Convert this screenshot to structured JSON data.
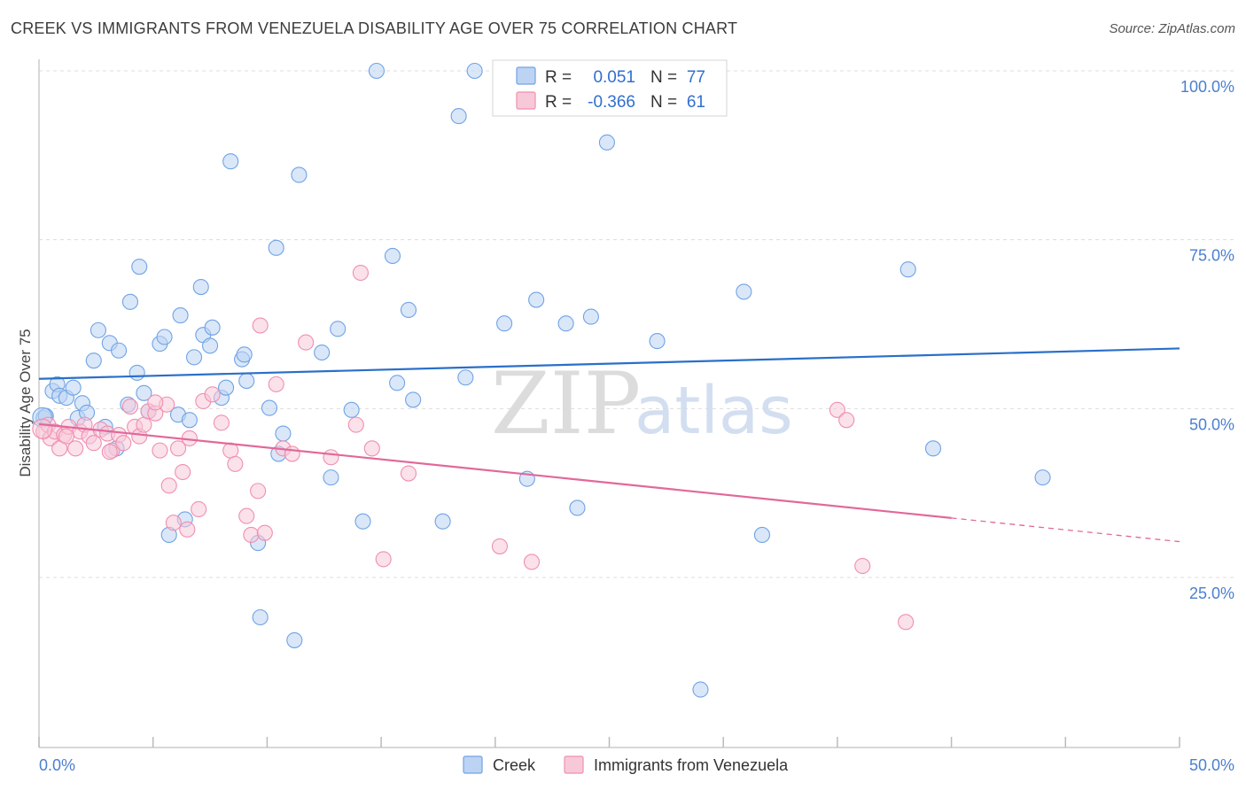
{
  "title": "CREEK VS IMMIGRANTS FROM VENEZUELA DISABILITY AGE OVER 75 CORRELATION CHART",
  "source": "Source: ZipAtlas.com",
  "watermark": {
    "zip": "ZIP",
    "atlas": "atlas"
  },
  "colors": {
    "creek": "#6fa3e6",
    "creek_fill": "#bcd3f3",
    "creek_line": "#2a6fc9",
    "venezuela": "#ef8fb0",
    "venezuela_fill": "#f7c9d8",
    "venezuela_line": "#e2689a",
    "axis_label": "#4a7fd0",
    "grid": "#dddddd"
  },
  "legend_box": {
    "rows": [
      {
        "r_label": "R =",
        "r_value": "0.051",
        "n_label": "N =",
        "n_value": "77"
      },
      {
        "r_label": "R =",
        "r_value": "-0.366",
        "n_label": "N =",
        "n_value": "61"
      }
    ]
  },
  "bottom_legend": [
    "Creek",
    "Immigrants from Venezuela"
  ],
  "chart_data": {
    "type": "scatter",
    "xlabel": "",
    "ylabel": "Disability Age Over 75",
    "xlim": [
      0,
      50
    ],
    "ylim": [
      0,
      105
    ],
    "x_tick_labels": [
      "0.0%",
      "50.0%"
    ],
    "y_tick_labels": [
      "100.0%",
      "75.0%",
      "50.0%",
      "25.0%"
    ],
    "y_ticks": [
      100,
      75,
      50,
      25
    ],
    "grid": true,
    "legend_position": "top-center",
    "series": [
      {
        "name": "Creek",
        "R": 0.051,
        "N": 77,
        "trend": {
          "x": [
            0,
            50
          ],
          "y": [
            54.4,
            58.9
          ],
          "dashed_from": null
        },
        "points": [
          [
            0.2,
            48.6
          ],
          [
            0.3,
            48.9
          ],
          [
            0.6,
            52.6
          ],
          [
            0.8,
            53.6
          ],
          [
            0.9,
            51.9
          ],
          [
            1.2,
            51.6
          ],
          [
            1.5,
            53.1
          ],
          [
            1.7,
            48.6
          ],
          [
            1.9,
            50.8
          ],
          [
            2.1,
            49.4
          ],
          [
            2.4,
            57.1
          ],
          [
            2.6,
            61.6
          ],
          [
            2.9,
            47.3
          ],
          [
            3.1,
            59.7
          ],
          [
            3.4,
            44.1
          ],
          [
            3.5,
            58.6
          ],
          [
            3.9,
            50.6
          ],
          [
            4.0,
            65.8
          ],
          [
            4.3,
            55.3
          ],
          [
            4.4,
            71.0
          ],
          [
            4.6,
            52.3
          ],
          [
            4.8,
            49.6
          ],
          [
            5.3,
            59.6
          ],
          [
            5.5,
            60.6
          ],
          [
            5.7,
            31.3
          ],
          [
            6.1,
            49.1
          ],
          [
            6.2,
            63.8
          ],
          [
            6.4,
            33.6
          ],
          [
            6.6,
            48.3
          ],
          [
            6.8,
            57.6
          ],
          [
            7.1,
            68.0
          ],
          [
            7.2,
            60.9
          ],
          [
            7.5,
            59.3
          ],
          [
            7.6,
            62.0
          ],
          [
            8.0,
            51.6
          ],
          [
            8.2,
            53.1
          ],
          [
            8.4,
            86.6
          ],
          [
            8.9,
            57.3
          ],
          [
            9.0,
            58.0
          ],
          [
            9.1,
            54.1
          ],
          [
            9.6,
            30.1
          ],
          [
            9.7,
            19.1
          ],
          [
            10.1,
            50.1
          ],
          [
            10.4,
            73.8
          ],
          [
            10.5,
            43.3
          ],
          [
            10.7,
            46.3
          ],
          [
            11.2,
            15.7
          ],
          [
            11.4,
            84.6
          ],
          [
            12.4,
            58.3
          ],
          [
            12.8,
            39.8
          ],
          [
            13.1,
            61.8
          ],
          [
            13.7,
            49.8
          ],
          [
            14.2,
            33.3
          ],
          [
            14.8,
            100.0
          ],
          [
            15.5,
            72.6
          ],
          [
            15.7,
            53.8
          ],
          [
            16.2,
            64.6
          ],
          [
            16.4,
            51.3
          ],
          [
            17.7,
            33.3
          ],
          [
            18.4,
            93.3
          ],
          [
            18.7,
            54.6
          ],
          [
            19.1,
            100.0
          ],
          [
            20.4,
            62.6
          ],
          [
            21.4,
            39.6
          ],
          [
            21.8,
            66.1
          ],
          [
            22.2,
            100.0
          ],
          [
            23.1,
            62.6
          ],
          [
            23.6,
            35.3
          ],
          [
            24.2,
            63.6
          ],
          [
            24.9,
            89.4
          ],
          [
            27.1,
            60.0
          ],
          [
            29.0,
            8.4
          ],
          [
            30.9,
            67.3
          ],
          [
            31.7,
            31.3
          ],
          [
            38.1,
            70.6
          ],
          [
            39.2,
            44.1
          ],
          [
            44.0,
            39.8
          ]
        ]
      },
      {
        "name": "Immigrants from Venezuela",
        "R": -0.366,
        "N": 61,
        "trend": {
          "x": [
            0,
            40,
            50
          ],
          "y": [
            47.7,
            33.8,
            30.3
          ],
          "dashed_from": 40
        },
        "points": [
          [
            0.2,
            46.6
          ],
          [
            0.4,
            47.6
          ],
          [
            0.5,
            45.6
          ],
          [
            0.7,
            46.6
          ],
          [
            0.9,
            44.1
          ],
          [
            1.1,
            46.1
          ],
          [
            1.3,
            47.3
          ],
          [
            1.6,
            44.1
          ],
          [
            1.8,
            46.6
          ],
          [
            2.0,
            47.6
          ],
          [
            2.2,
            45.9
          ],
          [
            2.4,
            44.9
          ],
          [
            2.7,
            46.9
          ],
          [
            3.0,
            46.3
          ],
          [
            3.2,
            43.8
          ],
          [
            3.5,
            46.1
          ],
          [
            3.7,
            44.9
          ],
          [
            4.0,
            50.3
          ],
          [
            4.2,
            47.3
          ],
          [
            4.4,
            45.9
          ],
          [
            4.6,
            47.6
          ],
          [
            4.8,
            49.6
          ],
          [
            5.1,
            49.3
          ],
          [
            5.3,
            43.8
          ],
          [
            5.6,
            50.6
          ],
          [
            5.7,
            38.6
          ],
          [
            5.9,
            33.1
          ],
          [
            6.1,
            44.1
          ],
          [
            6.3,
            40.6
          ],
          [
            6.6,
            45.6
          ],
          [
            7.0,
            35.1
          ],
          [
            7.2,
            51.1
          ],
          [
            7.6,
            52.1
          ],
          [
            8.0,
            47.9
          ],
          [
            8.4,
            43.8
          ],
          [
            8.6,
            41.8
          ],
          [
            9.1,
            34.1
          ],
          [
            9.3,
            31.3
          ],
          [
            9.6,
            37.8
          ],
          [
            9.7,
            62.3
          ],
          [
            9.9,
            31.6
          ],
          [
            10.4,
            53.6
          ],
          [
            10.7,
            44.1
          ],
          [
            11.1,
            43.3
          ],
          [
            11.7,
            59.8
          ],
          [
            12.8,
            42.8
          ],
          [
            13.9,
            47.6
          ],
          [
            14.1,
            70.1
          ],
          [
            14.6,
            44.1
          ],
          [
            15.1,
            27.7
          ],
          [
            16.2,
            40.4
          ],
          [
            20.2,
            29.6
          ],
          [
            21.6,
            27.3
          ],
          [
            35.0,
            49.8
          ],
          [
            35.4,
            48.3
          ],
          [
            36.1,
            26.7
          ],
          [
            38.0,
            18.4
          ],
          [
            6.5,
            32.1
          ],
          [
            5.1,
            50.9
          ],
          [
            3.1,
            43.6
          ],
          [
            1.2,
            45.9
          ]
        ]
      }
    ]
  }
}
